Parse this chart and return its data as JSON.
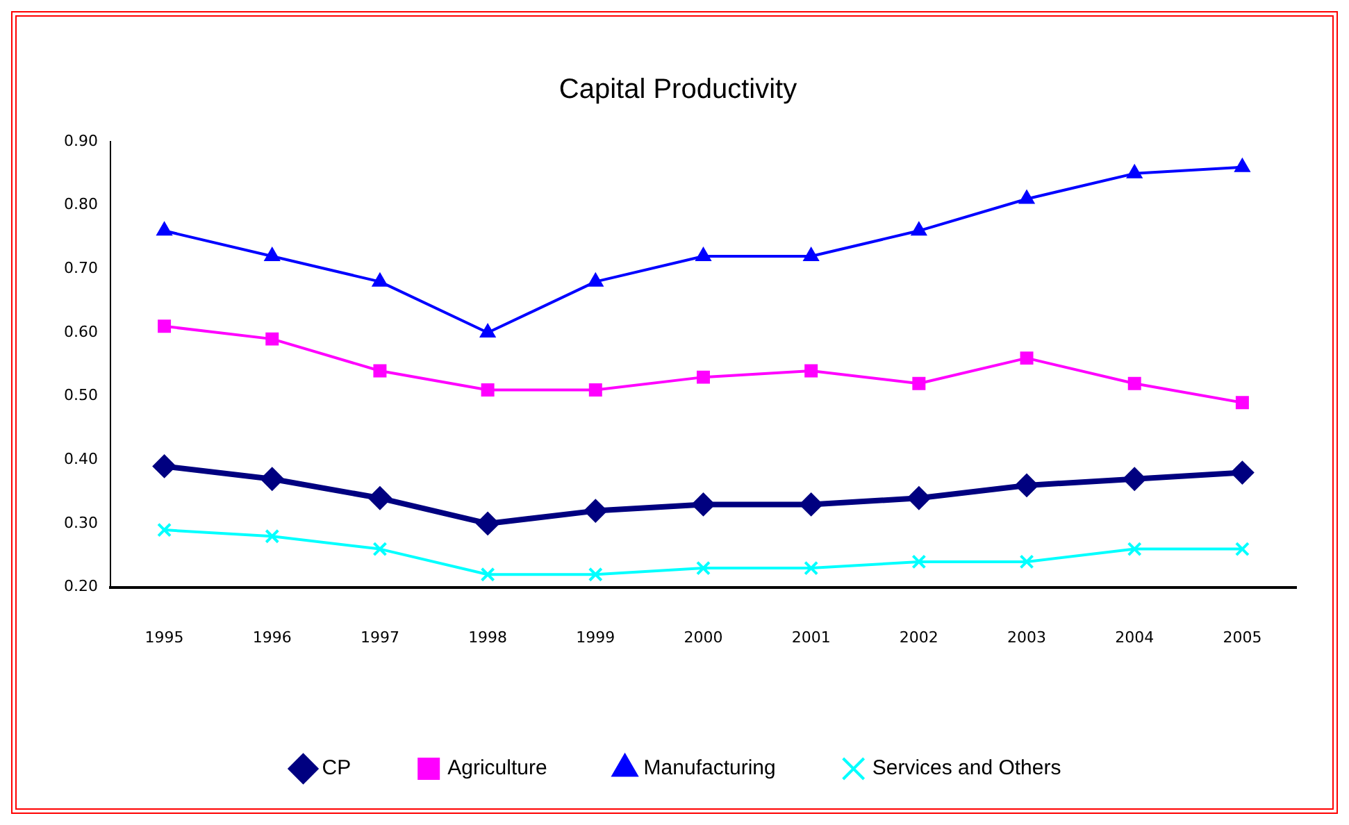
{
  "chart_data": {
    "type": "line",
    "title": "Capital Productivity",
    "categories": [
      "1995",
      "1996",
      "1997",
      "1998",
      "1999",
      "2000",
      "2001",
      "2002",
      "2003",
      "2004",
      "2005"
    ],
    "series": [
      {
        "name": "CP",
        "color": "#000080",
        "marker": "diamond",
        "values": [
          0.39,
          0.37,
          0.34,
          0.3,
          0.32,
          0.33,
          0.33,
          0.34,
          0.36,
          0.37,
          0.38
        ]
      },
      {
        "name": "Agriculture",
        "color": "#ff00ff",
        "marker": "square",
        "values": [
          0.61,
          0.59,
          0.54,
          0.51,
          0.51,
          0.53,
          0.54,
          0.52,
          0.56,
          0.52,
          0.49
        ]
      },
      {
        "name": "Manufacturing",
        "color": "#0000ff",
        "marker": "triangle",
        "values": [
          0.76,
          0.72,
          0.68,
          0.6,
          0.68,
          0.72,
          0.72,
          0.76,
          0.81,
          0.85,
          0.86
        ]
      },
      {
        "name": "Services and Others",
        "color": "#00ffff",
        "marker": "cross",
        "values": [
          0.29,
          0.28,
          0.26,
          0.22,
          0.22,
          0.23,
          0.23,
          0.24,
          0.24,
          0.26,
          0.26
        ]
      }
    ],
    "ylim": [
      0.2,
      0.9
    ],
    "yticks": [
      {
        "value": 0.2,
        "label": "0.20"
      },
      {
        "value": 0.3,
        "label": "0.30"
      },
      {
        "value": 0.4,
        "label": "0.40"
      },
      {
        "value": 0.5,
        "label": "0.50"
      },
      {
        "value": 0.6,
        "label": "0.60"
      },
      {
        "value": 0.7,
        "label": "0.70"
      },
      {
        "value": 0.8,
        "label": "0.80"
      },
      {
        "value": 0.9,
        "label": "0.90"
      }
    ],
    "grid": false,
    "legend": "bottom",
    "line_style": "solid"
  }
}
